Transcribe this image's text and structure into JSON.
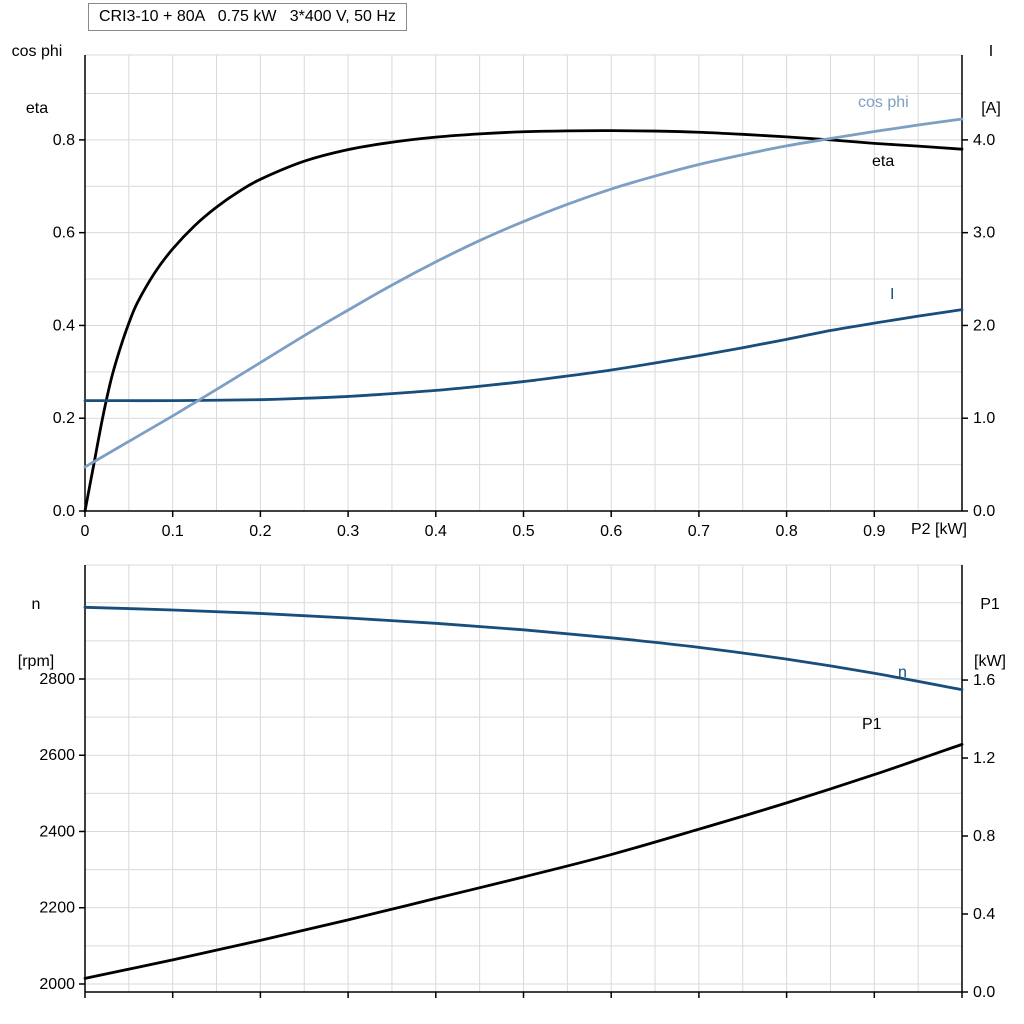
{
  "colors": {
    "background": "#ffffff",
    "grid": "#d9d9d9",
    "axis": "#000000",
    "black_curve": "#000000",
    "light_blue_curve": "#7d9fc4",
    "dark_blue_curve": "#174e7c"
  },
  "chart_data": [
    {
      "type": "line",
      "title": "CRI3-10 + 80A   0.75 kW   3*400 V, 50 Hz",
      "xlabel": "P2 [kW]",
      "x_range": [
        0,
        1.0
      ],
      "x_gridlines": [
        0.05,
        0.1,
        0.15,
        0.2,
        0.25,
        0.3,
        0.35,
        0.4,
        0.45,
        0.5,
        0.55,
        0.6,
        0.65,
        0.7,
        0.75,
        0.8,
        0.85,
        0.9,
        0.95
      ],
      "x_ticks": [
        0,
        0.1,
        0.2,
        0.3,
        0.4,
        0.5,
        0.6,
        0.7,
        0.8,
        0.9
      ],
      "x_tick_labels": [
        "0",
        "0.1",
        "0.2",
        "0.3",
        "0.4",
        "0.5",
        "0.6",
        "0.7",
        "0.8",
        "0.9"
      ],
      "y_left": {
        "title_lines": [
          "cos phi",
          "eta"
        ],
        "range": [
          0,
          0.983
        ],
        "ticks": [
          0,
          0.2,
          0.4,
          0.6,
          0.8
        ],
        "tick_labels": [
          "0.0",
          "0.2",
          "0.4",
          "0.6",
          "0.8"
        ],
        "gridlines": [
          0.1,
          0.2,
          0.3,
          0.4,
          0.5,
          0.6,
          0.7,
          0.8,
          0.9
        ]
      },
      "y_right": {
        "title_lines": [
          "I",
          "[A]"
        ],
        "range": [
          0,
          4.915
        ],
        "ticks": [
          0,
          1,
          2,
          3,
          4
        ],
        "tick_labels": [
          "0.0",
          "1.0",
          "2.0",
          "3.0",
          "4.0"
        ]
      },
      "series": [
        {
          "name": "eta",
          "axis": "left",
          "color_key": "black_curve",
          "x": [
            0,
            0.01,
            0.02,
            0.03,
            0.04,
            0.05,
            0.06,
            0.08,
            0.1,
            0.125,
            0.15,
            0.175,
            0.2,
            0.25,
            0.3,
            0.35,
            0.4,
            0.45,
            0.5,
            0.55,
            0.6,
            0.65,
            0.7,
            0.75,
            0.8,
            0.85,
            0.9,
            0.95,
            1.0
          ],
          "y": [
            0,
            0.1,
            0.2,
            0.285,
            0.35,
            0.405,
            0.45,
            0.515,
            0.565,
            0.615,
            0.655,
            0.688,
            0.715,
            0.754,
            0.779,
            0.795,
            0.806,
            0.813,
            0.8175,
            0.8195,
            0.82,
            0.819,
            0.8165,
            0.812,
            0.8065,
            0.8,
            0.7925,
            0.7865,
            0.78
          ]
        },
        {
          "name": "I",
          "axis": "right",
          "color_key": "dark_blue_curve",
          "x": [
            0,
            0.1,
            0.2,
            0.25,
            0.3,
            0.35,
            0.4,
            0.45,
            0.5,
            0.55,
            0.6,
            0.65,
            0.7,
            0.75,
            0.8,
            0.85,
            0.9,
            0.95,
            1.0
          ],
          "y": [
            1.19,
            1.19,
            1.2,
            1.215,
            1.235,
            1.265,
            1.3,
            1.345,
            1.395,
            1.455,
            1.52,
            1.595,
            1.675,
            1.76,
            1.85,
            1.945,
            2.025,
            2.1,
            2.17
          ]
        },
        {
          "name": "cos phi",
          "axis": "left",
          "color_key": "light_blue_curve",
          "x": [
            0,
            0.05,
            0.1,
            0.15,
            0.2,
            0.25,
            0.3,
            0.35,
            0.4,
            0.45,
            0.5,
            0.55,
            0.6,
            0.65,
            0.7,
            0.75,
            0.8,
            0.85,
            0.9,
            0.95,
            1.0
          ],
          "y": [
            0.095,
            0.15,
            0.205,
            0.262,
            0.32,
            0.378,
            0.433,
            0.487,
            0.537,
            0.583,
            0.624,
            0.661,
            0.694,
            0.722,
            0.747,
            0.768,
            0.787,
            0.803,
            0.818,
            0.832,
            0.845
          ]
        }
      ]
    },
    {
      "type": "line",
      "x_range": [
        0,
        1.0
      ],
      "x_gridlines": [
        0.05,
        0.1,
        0.15,
        0.2,
        0.25,
        0.3,
        0.35,
        0.4,
        0.45,
        0.5,
        0.55,
        0.6,
        0.65,
        0.7,
        0.75,
        0.8,
        0.85,
        0.9,
        0.95
      ],
      "x_ticks": [
        0,
        0.1,
        0.2,
        0.3,
        0.4,
        0.5,
        0.6,
        0.7,
        0.8,
        0.9,
        1.0
      ],
      "x_tick_labels": [],
      "y_left": {
        "title_lines": [
          "n",
          "[rpm]"
        ],
        "range": [
          1979,
          3099
        ],
        "ticks": [
          2000,
          2200,
          2400,
          2600,
          2800
        ],
        "tick_labels": [
          "2000",
          "2200",
          "2400",
          "2600",
          "2800"
        ],
        "gridlines": [
          2000,
          2100,
          2200,
          2300,
          2400,
          2500,
          2600,
          2700,
          2800,
          2900,
          3000
        ]
      },
      "y_right": {
        "title_lines": [
          "P1",
          "[kW]"
        ],
        "range": [
          0,
          2.19
        ],
        "ticks": [
          0,
          0.4,
          0.8,
          1.2,
          1.6
        ],
        "tick_labels": [
          "0.0",
          "0.4",
          "0.8",
          "1.2",
          "1.6"
        ]
      },
      "series": [
        {
          "name": "n",
          "axis": "left",
          "color_key": "dark_blue_curve",
          "x": [
            0,
            0.1,
            0.2,
            0.3,
            0.4,
            0.5,
            0.6,
            0.7,
            0.8,
            0.9,
            1.0
          ],
          "y": [
            2988,
            2981,
            2972,
            2960,
            2946,
            2929,
            2908,
            2883,
            2852,
            2815,
            2772
          ]
        },
        {
          "name": "P1",
          "axis": "right",
          "color_key": "black_curve",
          "x": [
            0,
            0.1,
            0.2,
            0.3,
            0.4,
            0.5,
            0.6,
            0.7,
            0.8,
            0.9,
            1.0
          ],
          "y": [
            0.07,
            0.165,
            0.265,
            0.37,
            0.48,
            0.59,
            0.705,
            0.835,
            0.97,
            1.115,
            1.27
          ]
        }
      ]
    }
  ]
}
